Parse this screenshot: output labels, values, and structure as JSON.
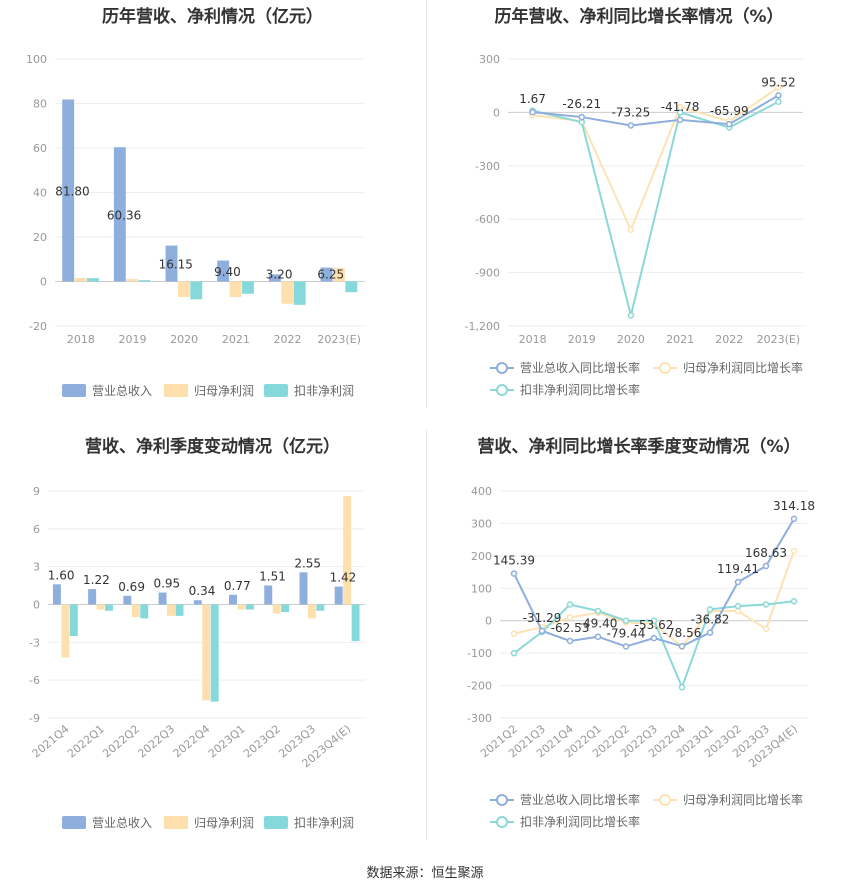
{
  "source": "数据来源：恒生聚源",
  "colors": {
    "revenue": "#8eaedd",
    "net": "#fde0ad",
    "deducted": "#85d9da",
    "revenue_line": "#8eaedd",
    "net_line": "#fde3b3",
    "deducted_line": "#8cd8d8"
  },
  "chart_data": [
    {
      "id": "p1",
      "type": "bar",
      "title": "历年营收、净利情况（亿元）",
      "categories": [
        "2018",
        "2019",
        "2020",
        "2021",
        "2022",
        "2023(E)"
      ],
      "yticks": [
        "100",
        "80",
        "60",
        "40",
        "20",
        "0",
        "-20"
      ],
      "ylim": [
        -20,
        100
      ],
      "series": [
        {
          "name": "营业总收入",
          "values": [
            81.8,
            60.36,
            16.15,
            9.4,
            3.2,
            6.25
          ]
        },
        {
          "name": "归母净利润",
          "values": [
            1.6,
            1.1,
            -7.0,
            -7.0,
            -10.0,
            6.0
          ]
        },
        {
          "name": "扣非净利润",
          "values": [
            1.5,
            0.6,
            -8.0,
            -5.5,
            -10.5,
            -4.8
          ]
        }
      ],
      "labels": [
        "81.80",
        "60.36",
        "16.15",
        "9.40",
        "3.20",
        "6.25"
      ],
      "legend_position": "bottom",
      "grid": true
    },
    {
      "id": "p2",
      "type": "line",
      "title": "历年营收、净利同比增长率情况（%）",
      "categories": [
        "2018",
        "2019",
        "2020",
        "2021",
        "2022",
        "2023(E)"
      ],
      "yticks": [
        "300",
        "0",
        "-300",
        "-600",
        "-900",
        "-1,200"
      ],
      "ylim": [
        -1200,
        300
      ],
      "series": [
        {
          "name": "营业总收入同比增长率",
          "values": [
            1.67,
            -26.21,
            -73.25,
            -41.78,
            -65.99,
            95.52
          ]
        },
        {
          "name": "归母净利润同比增长率",
          "values": [
            -15,
            -50,
            -660,
            30,
            -50,
            140
          ]
        },
        {
          "name": "扣非净利润同比增长率",
          "values": [
            10,
            -55,
            -1140,
            0,
            -85,
            60
          ]
        }
      ],
      "labels": [
        "1.67",
        "-26.21",
        "-73.25",
        "-41.78",
        "-65.99",
        "95.52"
      ],
      "legend_position": "bottom",
      "grid": true
    },
    {
      "id": "p3",
      "type": "bar",
      "title": "营收、净利季度变动情况（亿元）",
      "categories": [
        "2021Q4",
        "2022Q1",
        "2022Q2",
        "2022Q3",
        "2022Q4",
        "2023Q1",
        "2023Q2",
        "2023Q3",
        "2023Q4(E)"
      ],
      "yticks": [
        "9",
        "6",
        "3",
        "0",
        "-3",
        "-6",
        "-9"
      ],
      "ylim": [
        -9,
        9
      ],
      "series": [
        {
          "name": "营业总收入",
          "values": [
            1.6,
            1.22,
            0.69,
            0.95,
            0.34,
            0.77,
            1.51,
            2.55,
            1.42
          ]
        },
        {
          "name": "归母净利润",
          "values": [
            -4.2,
            -0.4,
            -1.0,
            -0.9,
            -7.6,
            -0.4,
            -0.7,
            -1.1,
            8.6
          ]
        },
        {
          "name": "扣非净利润",
          "values": [
            -2.5,
            -0.5,
            -1.1,
            -0.9,
            -7.7,
            -0.4,
            -0.6,
            -0.5,
            -2.9
          ]
        }
      ],
      "labels": [
        "1.60",
        "1.22",
        "0.69",
        "0.95",
        "0.34",
        "0.77",
        "1.51",
        "2.55",
        "1.42"
      ],
      "legend_position": "bottom",
      "grid": true
    },
    {
      "id": "p4",
      "type": "line",
      "title": "营收、净利同比增长率季度变动情况（%）",
      "categories": [
        "2021Q2",
        "2021Q3",
        "2021Q4",
        "2022Q1",
        "2022Q2",
        "2022Q3",
        "2022Q4",
        "2023Q1",
        "2023Q2",
        "2023Q3",
        "2023Q4(E)"
      ],
      "yticks": [
        "400",
        "300",
        "200",
        "100",
        "0",
        "-100",
        "-200",
        "-300"
      ],
      "ylim": [
        -300,
        400
      ],
      "series": [
        {
          "name": "营业总收入同比增长率",
          "values": [
            145.39,
            -31.29,
            -62.53,
            -49.4,
            -79.44,
            -53.62,
            -78.56,
            -36.82,
            119.41,
            168.63,
            314.18
          ]
        },
        {
          "name": "归母净利润同比增长率",
          "values": [
            -40,
            -20,
            10,
            25,
            -5,
            -10,
            -80,
            30,
            30,
            -25,
            215
          ]
        },
        {
          "name": "扣非净利润同比增长率",
          "values": [
            -100,
            -35,
            50,
            30,
            0,
            0,
            -205,
            35,
            45,
            50,
            60
          ]
        }
      ],
      "labels": [
        "145.39",
        "-31.29",
        "-62.53",
        "-49.40",
        "-79.44",
        "-53.62",
        "-78.56",
        "-36.82",
        "119.41",
        "168.63",
        "314.18"
      ],
      "legend_position": "bottom",
      "grid": true
    }
  ]
}
